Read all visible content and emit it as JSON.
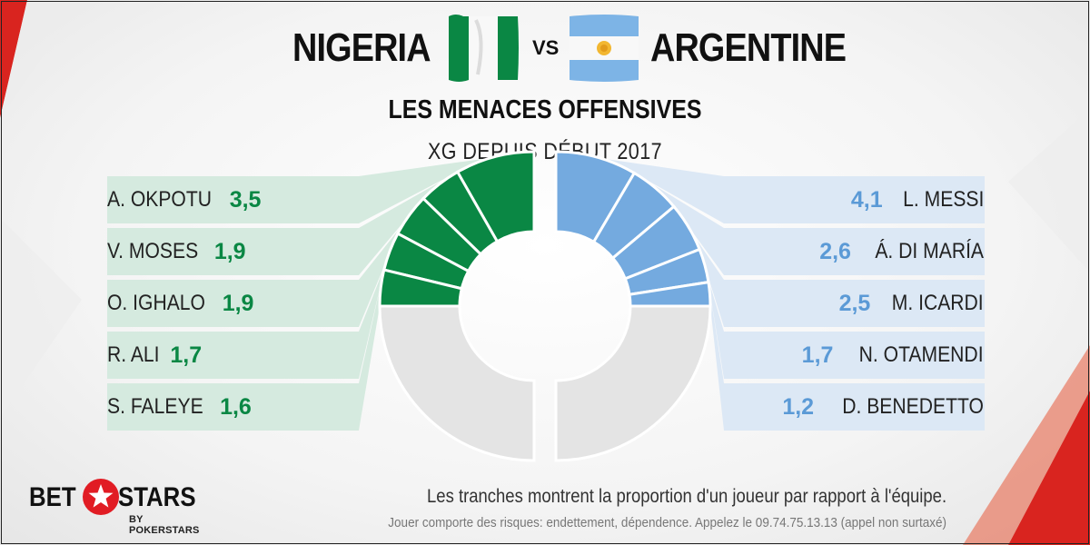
{
  "header": {
    "team_left": "NIGERIA",
    "vs": "VS",
    "team_right": "ARGENTINE",
    "subtitle": "LES MENACES OFFENSIVES",
    "metric": "XG DEPUIS DÉBUT 2017"
  },
  "colors": {
    "nigeria": "#0a8744",
    "nigeria_panel": "#d5eadf",
    "argentina": "#74aadf",
    "argentina_panel": "#dce8f5",
    "rest": "#e4e4e4",
    "brand_red": "#e11c24"
  },
  "chart_data": {
    "type": "pie",
    "variant": "split-donut",
    "title": "LES MENACES OFFENSIVES",
    "subtitle": "XG DEPUIS DÉBUT 2017",
    "series": [
      {
        "name": "NIGERIA",
        "players": [
          "A. OKPOTU",
          "V. MOSES",
          "O. IGHALO",
          "R. ALI",
          "S. FALEYE"
        ],
        "labels": [
          "3,5",
          "1,9",
          "1,9",
          "1,7",
          "1,6"
        ],
        "values": [
          3.5,
          1.9,
          1.9,
          1.7,
          1.6
        ],
        "share_of_team": 0.34
      },
      {
        "name": "ARGENTINE",
        "players": [
          "L. MESSI",
          "Á. DI MARÍA",
          "M. ICARDI",
          "N. OTAMENDI",
          "D. BENEDETTO"
        ],
        "labels": [
          "4,1",
          "2,6",
          "2,5",
          "1,7",
          "1,2"
        ],
        "values": [
          4.1,
          2.6,
          2.5,
          1.7,
          1.2
        ],
        "share_of_team": 0.31
      }
    ]
  },
  "footer": {
    "brand_left": "BET",
    "brand_right": "STARS",
    "brand_sub": "BY POKERSTARS",
    "caption": "Les tranches montrent la proportion d'un joueur par rapport à l'équipe.",
    "disclaimer": "Jouer comporte des risques: endettement, dépendence. Appelez le 09.74.75.13.13  (appel non surtaxé)"
  }
}
